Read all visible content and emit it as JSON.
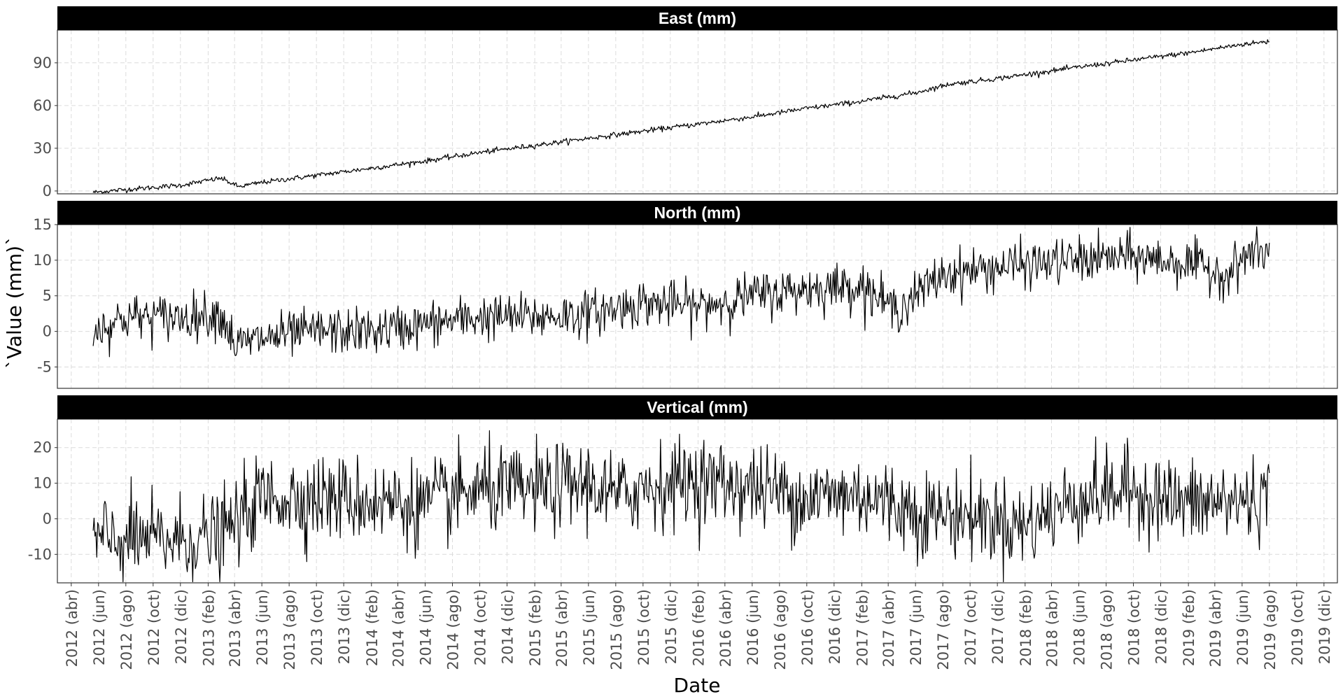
{
  "chart_data": {
    "type": "line",
    "xlabel": "Date",
    "ylabel": "`Value (mm)`",
    "x_range": [
      "2012-03-01",
      "2019-12-31"
    ],
    "x_ticks": [
      "2012-04-01",
      "2012-06-01",
      "2012-08-01",
      "2012-10-01",
      "2012-12-01",
      "2013-02-01",
      "2013-04-01",
      "2013-06-01",
      "2013-08-01",
      "2013-10-01",
      "2013-12-01",
      "2014-02-01",
      "2014-04-01",
      "2014-06-01",
      "2014-08-01",
      "2014-10-01",
      "2014-12-01",
      "2015-02-01",
      "2015-04-01",
      "2015-06-01",
      "2015-08-01",
      "2015-10-01",
      "2015-12-01",
      "2016-02-01",
      "2016-04-01",
      "2016-06-01",
      "2016-08-01",
      "2016-10-01",
      "2016-12-01",
      "2017-02-01",
      "2017-04-01",
      "2017-06-01",
      "2017-08-01",
      "2017-10-01",
      "2017-12-01",
      "2018-02-01",
      "2018-04-01",
      "2018-06-01",
      "2018-08-01",
      "2018-10-01",
      "2018-12-01",
      "2019-02-01",
      "2019-04-01",
      "2019-06-01",
      "2019-08-01",
      "2019-10-01",
      "2019-12-01"
    ],
    "x_tick_labels": [
      "2012 (abr)",
      "2012 (jun)",
      "2012 (ago)",
      "2012 (oct)",
      "2012 (dic)",
      "2013 (feb)",
      "2013 (abr)",
      "2013 (jun)",
      "2013 (ago)",
      "2013 (oct)",
      "2013 (dic)",
      "2014 (feb)",
      "2014 (abr)",
      "2014 (jun)",
      "2014 (ago)",
      "2014 (oct)",
      "2014 (dic)",
      "2015 (feb)",
      "2015 (abr)",
      "2015 (jun)",
      "2015 (ago)",
      "2015 (oct)",
      "2015 (dic)",
      "2016 (feb)",
      "2016 (abr)",
      "2016 (jun)",
      "2016 (ago)",
      "2016 (oct)",
      "2016 (dic)",
      "2017 (feb)",
      "2017 (abr)",
      "2017 (jun)",
      "2017 (ago)",
      "2017 (oct)",
      "2017 (dic)",
      "2018 (feb)",
      "2018 (abr)",
      "2018 (jun)",
      "2018 (ago)",
      "2018 (oct)",
      "2018 (dic)",
      "2019 (feb)",
      "2019 (abr)",
      "2019 (jun)",
      "2019 (ago)",
      "2019 (oct)",
      "2019 (dic)"
    ],
    "grid": true,
    "line_color": "#000000",
    "strip_color": "#000000",
    "panels": [
      {
        "title": "East (mm)",
        "ylim": [
          -2,
          113
        ],
        "yticks": [
          0,
          30,
          60,
          90
        ],
        "noise": 0.9,
        "series": {
          "x": [
            "2012-05-20",
            "2012-08-01",
            "2012-12-01",
            "2013-03-01",
            "2013-04-10",
            "2013-06-01",
            "2013-10-01",
            "2014-02-01",
            "2014-06-01",
            "2014-10-01",
            "2015-02-01",
            "2015-06-01",
            "2015-10-01",
            "2016-02-01",
            "2016-06-01",
            "2016-10-01",
            "2017-02-01",
            "2017-06-01",
            "2017-08-15",
            "2017-12-01",
            "2018-06-01",
            "2018-10-01",
            "2019-02-01",
            "2019-06-01",
            "2019-08-01"
          ],
          "y": [
            -1,
            1,
            4,
            9,
            3,
            6,
            11,
            16,
            21,
            27,
            32,
            37,
            42,
            47,
            52,
            58,
            63,
            69,
            75,
            79,
            87,
            92,
            97,
            103,
            105
          ]
        }
      },
      {
        "title": "North (mm)",
        "ylim": [
          -8,
          15
        ],
        "yticks": [
          -5,
          0,
          5,
          10,
          15
        ],
        "noise": 1.6,
        "series": {
          "x": [
            "2012-05-20",
            "2012-08-01",
            "2012-12-01",
            "2013-03-01",
            "2013-04-05",
            "2013-06-01",
            "2013-10-01",
            "2014-02-01",
            "2014-06-01",
            "2014-10-01",
            "2015-02-01",
            "2015-06-01",
            "2015-10-01",
            "2016-02-01",
            "2016-06-01",
            "2016-10-01",
            "2017-02-01",
            "2017-04-15",
            "2017-06-01",
            "2017-08-01",
            "2017-12-01",
            "2018-06-01",
            "2018-10-01",
            "2019-02-01",
            "2019-05-01",
            "2019-06-15",
            "2019-08-01"
          ],
          "y": [
            0,
            2,
            2,
            2.5,
            -2,
            -1,
            0,
            0,
            1,
            2,
            2,
            2.5,
            4,
            3.5,
            5,
            6,
            6.5,
            3,
            5,
            8,
            9,
            10,
            10.5,
            9.5,
            8,
            11,
            11
          ]
        }
      },
      {
        "title": "Vertical (mm)",
        "ylim": [
          -18,
          28
        ],
        "yticks": [
          -10,
          0,
          10,
          20
        ],
        "noise": 6,
        "series": {
          "x": [
            "2012-05-20",
            "2012-08-01",
            "2012-12-01",
            "2013-03-01",
            "2013-06-01",
            "2013-10-01",
            "2014-02-01",
            "2014-06-01",
            "2014-10-01",
            "2015-02-01",
            "2015-06-01",
            "2015-08-01",
            "2015-10-01",
            "2016-02-01",
            "2016-06-01",
            "2016-10-01",
            "2017-02-01",
            "2017-06-01",
            "2017-10-01",
            "2018-02-01",
            "2018-06-01",
            "2018-10-01",
            "2019-02-01",
            "2019-06-01",
            "2019-08-01"
          ],
          "y": [
            -6,
            -6,
            -6,
            -5,
            6,
            6,
            5,
            4,
            8,
            8,
            10,
            6,
            9,
            11,
            9,
            6,
            7,
            2,
            1,
            -2,
            6,
            8,
            4,
            5,
            6
          ]
        }
      }
    ]
  }
}
